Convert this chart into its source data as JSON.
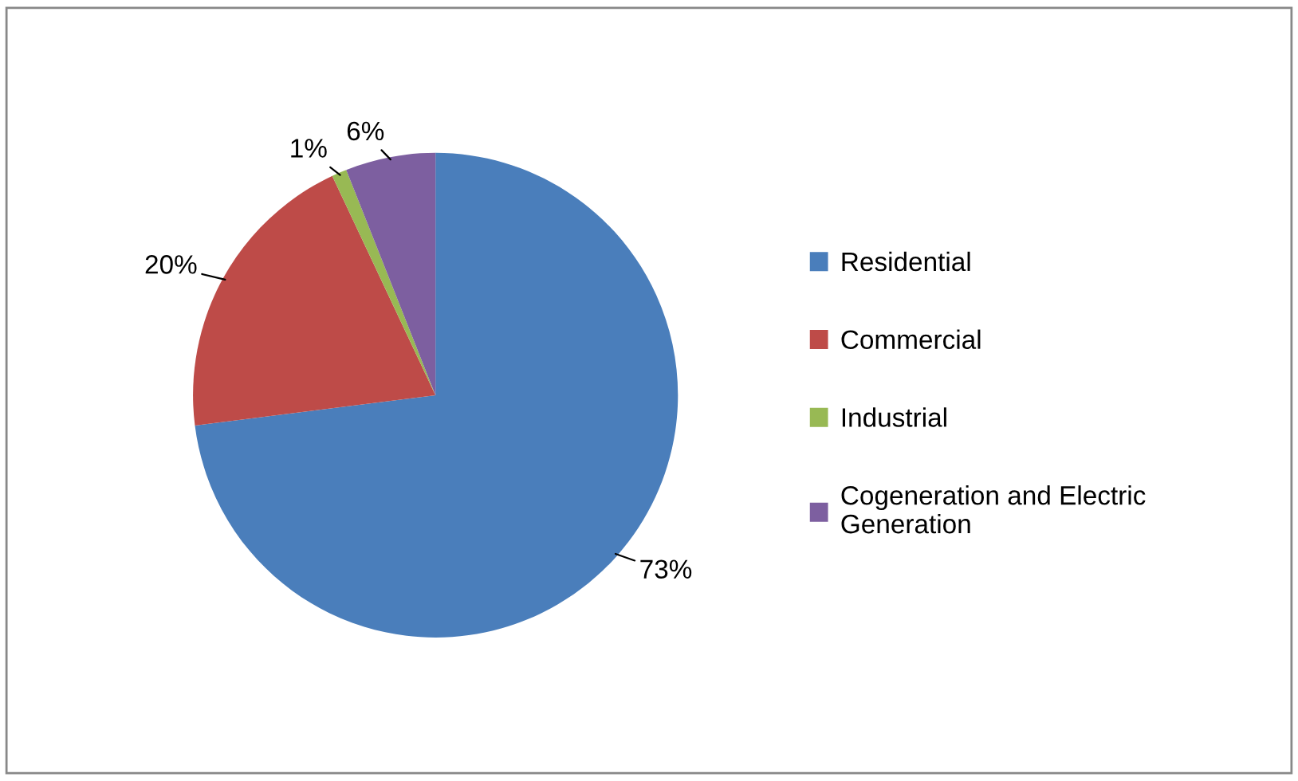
{
  "chart_data": {
    "type": "pie",
    "categories": [
      "Residential",
      "Commercial",
      "Industrial",
      "Cogeneration and Electric\nGeneration"
    ],
    "values": [
      73,
      20,
      1,
      6
    ],
    "value_labels": [
      "73%",
      "20%",
      "1%",
      "6%"
    ],
    "colors": [
      "#4a7ebb",
      "#be4b48",
      "#98b954",
      "#7d5fa0"
    ],
    "legend": "right"
  }
}
